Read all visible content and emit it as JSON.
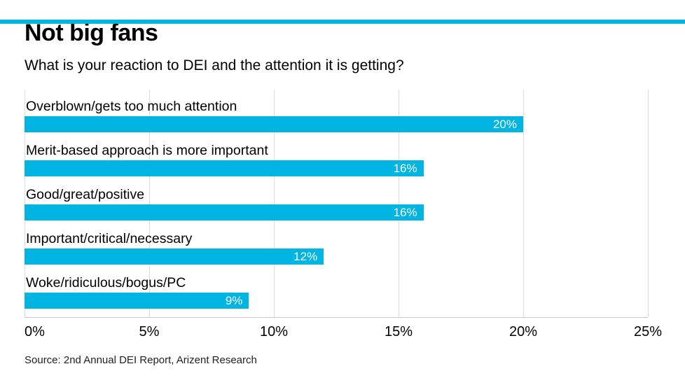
{
  "page": {
    "title": "Not big fans",
    "subtitle": "What is your reaction to DEI and the attention it is getting?",
    "source": "Source: 2nd Annual DEI Report, Arizent Research",
    "accent_color": "#00b5e2"
  },
  "chart_data": {
    "type": "bar",
    "orientation": "horizontal",
    "title": "Not big fans",
    "subtitle": "What is your reaction to DEI and the attention it is getting?",
    "categories": [
      "Overblown/gets too much attention",
      "Merit-based approach is more important",
      "Good/great/positive",
      "Important/critical/necessary",
      "Woke/ridiculous/bogus/PC"
    ],
    "values": [
      20,
      16,
      16,
      12,
      9
    ],
    "value_labels": [
      "20%",
      "16%",
      "16%",
      "12%",
      "9%"
    ],
    "xlabel": "",
    "ylabel": "",
    "xlim": [
      0,
      25
    ],
    "x_ticks": [
      "0%",
      "5%",
      "10%",
      "15%",
      "20%",
      "25%"
    ],
    "grid": true,
    "legend": false,
    "bar_color": "#00b5e2",
    "value_label_color": "#ffffff"
  }
}
